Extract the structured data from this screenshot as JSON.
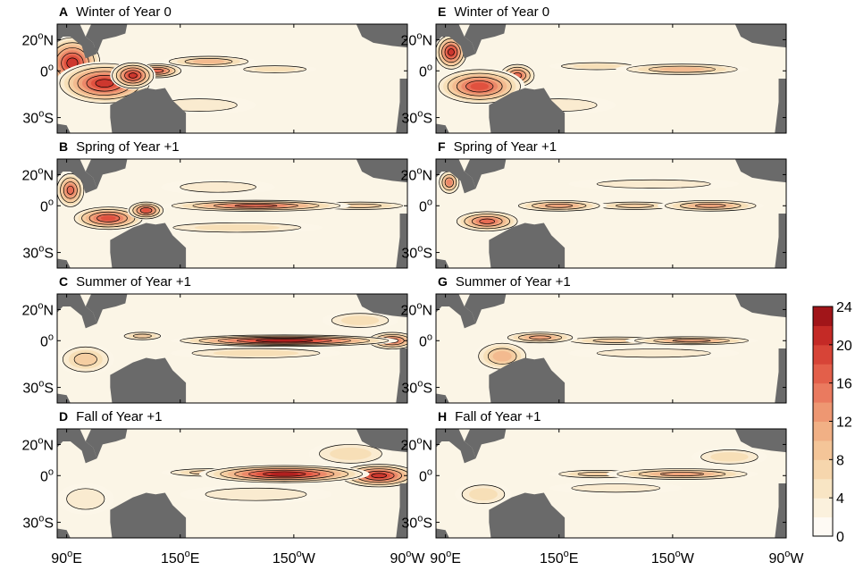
{
  "figure": {
    "panels": [
      {
        "letter": "A",
        "title": "Winter of Year 0",
        "column": 0,
        "row": 0,
        "hotspots": [
          {
            "lon": 93,
            "lat": 5,
            "rx": 16,
            "ry": 18,
            "v": 20
          },
          {
            "lon": 110,
            "lat": -8,
            "rx": 26,
            "ry": 14,
            "v": 20
          },
          {
            "lon": 125,
            "lat": -3,
            "rx": 12,
            "ry": 9,
            "v": 20
          },
          {
            "lon": 138,
            "lat": 0,
            "rx": 14,
            "ry": 5,
            "v": 16
          },
          {
            "lon": 165,
            "lat": 6,
            "rx": 25,
            "ry": 4,
            "v": 10
          },
          {
            "lon": 200,
            "lat": 1,
            "rx": 22,
            "ry": 3,
            "v": 6
          },
          {
            "lon": 160,
            "lat": -22,
            "rx": 30,
            "ry": 6,
            "v": 4
          }
        ]
      },
      {
        "letter": "B",
        "title": "Spring of Year +1",
        "column": 0,
        "row": 1,
        "hotspots": [
          {
            "lon": 92,
            "lat": 10,
            "rx": 8,
            "ry": 12,
            "v": 16
          },
          {
            "lon": 112,
            "lat": -8,
            "rx": 20,
            "ry": 8,
            "v": 18
          },
          {
            "lon": 132,
            "lat": -3,
            "rx": 10,
            "ry": 6,
            "v": 18
          },
          {
            "lon": 190,
            "lat": 0,
            "rx": 50,
            "ry": 4,
            "v": 16
          },
          {
            "lon": 245,
            "lat": 0,
            "rx": 28,
            "ry": 3,
            "v": 8
          },
          {
            "lon": 180,
            "lat": -14,
            "rx": 45,
            "ry": 4,
            "v": 6
          },
          {
            "lon": 170,
            "lat": 12,
            "rx": 30,
            "ry": 5,
            "v": 4
          }
        ]
      },
      {
        "letter": "C",
        "title": "Summer of Year +1",
        "column": 0,
        "row": 2,
        "hotspots": [
          {
            "lon": 205,
            "lat": 0,
            "rx": 60,
            "ry": 4,
            "v": 22
          },
          {
            "lon": 262,
            "lat": 0,
            "rx": 14,
            "ry": 6,
            "v": 16
          },
          {
            "lon": 130,
            "lat": 3,
            "rx": 12,
            "ry": 3,
            "v": 8
          },
          {
            "lon": 100,
            "lat": -12,
            "rx": 15,
            "ry": 10,
            "v": 8
          },
          {
            "lon": 190,
            "lat": -8,
            "rx": 45,
            "ry": 4,
            "v": 6
          },
          {
            "lon": 245,
            "lat": 13,
            "rx": 20,
            "ry": 6,
            "v": 6
          }
        ]
      },
      {
        "letter": "D",
        "title": "Fall of Year +1",
        "column": 0,
        "row": 3,
        "hotspots": [
          {
            "lon": 205,
            "lat": 1,
            "rx": 45,
            "ry": 6,
            "v": 22
          },
          {
            "lon": 255,
            "lat": 0,
            "rx": 22,
            "ry": 8,
            "v": 20
          },
          {
            "lon": 165,
            "lat": 2,
            "rx": 25,
            "ry": 3,
            "v": 8
          },
          {
            "lon": 240,
            "lat": 14,
            "rx": 22,
            "ry": 8,
            "v": 6
          },
          {
            "lon": 190,
            "lat": -12,
            "rx": 40,
            "ry": 6,
            "v": 4
          },
          {
            "lon": 100,
            "lat": -15,
            "rx": 15,
            "ry": 10,
            "v": 4
          }
        ]
      },
      {
        "letter": "E",
        "title": "Winter of Year 0",
        "column": 1,
        "row": 0,
        "hotspots": [
          {
            "lon": 93,
            "lat": 12,
            "rx": 9,
            "ry": 12,
            "v": 20
          },
          {
            "lon": 108,
            "lat": -10,
            "rx": 24,
            "ry": 12,
            "v": 18
          },
          {
            "lon": 128,
            "lat": -3,
            "rx": 10,
            "ry": 8,
            "v": 16
          },
          {
            "lon": 215,
            "lat": 1,
            "rx": 35,
            "ry": 4,
            "v": 10
          },
          {
            "lon": 170,
            "lat": 3,
            "rx": 25,
            "ry": 3,
            "v": 6
          },
          {
            "lon": 150,
            "lat": -22,
            "rx": 30,
            "ry": 6,
            "v": 4
          }
        ]
      },
      {
        "letter": "F",
        "title": "Spring of Year +1",
        "column": 1,
        "row": 1,
        "hotspots": [
          {
            "lon": 92,
            "lat": 15,
            "rx": 6,
            "ry": 8,
            "v": 14
          },
          {
            "lon": 112,
            "lat": -10,
            "rx": 18,
            "ry": 7,
            "v": 16
          },
          {
            "lon": 150,
            "lat": 0,
            "rx": 25,
            "ry": 4,
            "v": 12
          },
          {
            "lon": 230,
            "lat": 0,
            "rx": 28,
            "ry": 4,
            "v": 12
          },
          {
            "lon": 190,
            "lat": 0,
            "rx": 25,
            "ry": 3,
            "v": 8
          },
          {
            "lon": 200,
            "lat": 14,
            "rx": 45,
            "ry": 4,
            "v": 4
          }
        ]
      },
      {
        "letter": "G",
        "title": "Summer of Year +1",
        "column": 1,
        "row": 2,
        "hotspots": [
          {
            "lon": 140,
            "lat": 2,
            "rx": 20,
            "ry": 4,
            "v": 12
          },
          {
            "lon": 220,
            "lat": 0,
            "rx": 35,
            "ry": 3,
            "v": 12
          },
          {
            "lon": 120,
            "lat": -10,
            "rx": 15,
            "ry": 10,
            "v": 10
          },
          {
            "lon": 180,
            "lat": 0,
            "rx": 30,
            "ry": 3,
            "v": 8
          },
          {
            "lon": 200,
            "lat": -8,
            "rx": 45,
            "ry": 4,
            "v": 4
          }
        ]
      },
      {
        "letter": "H",
        "title": "Fall of Year +1",
        "column": 1,
        "row": 3,
        "hotspots": [
          {
            "lon": 215,
            "lat": 1,
            "rx": 40,
            "ry": 4,
            "v": 12
          },
          {
            "lon": 170,
            "lat": 1,
            "rx": 25,
            "ry": 3,
            "v": 8
          },
          {
            "lon": 240,
            "lat": 12,
            "rx": 20,
            "ry": 6,
            "v": 6
          },
          {
            "lon": 180,
            "lat": -8,
            "rx": 35,
            "ry": 4,
            "v": 4
          },
          {
            "lon": 110,
            "lat": -12,
            "rx": 15,
            "ry": 8,
            "v": 6
          }
        ]
      }
    ],
    "lat_ticks": [
      {
        "value": 20,
        "label_num": "20",
        "label_sup": "o",
        "label_hem": "N"
      },
      {
        "value": 0,
        "label_num": "0",
        "label_sup": "o",
        "label_hem": ""
      },
      {
        "value": -30,
        "label_num": "30",
        "label_sup": "o",
        "label_hem": "S"
      }
    ],
    "lon_ticks": [
      {
        "value": 90,
        "label_num": "90",
        "label_sup": "o",
        "label_hem": "E"
      },
      {
        "value": 150,
        "label_num": "150",
        "label_sup": "o",
        "label_hem": "E"
      },
      {
        "value": 210,
        "label_num": "150",
        "label_sup": "o",
        "label_hem": "W"
      },
      {
        "value": 270,
        "label_num": "90",
        "label_sup": "o",
        "label_hem": "W"
      }
    ],
    "lon_range": [
      85,
      270
    ],
    "lat_range": [
      -40,
      30
    ],
    "land_color": "#6a6a6a",
    "ocean_color": "#fbf5e6",
    "colorbar": {
      "min": 0,
      "max": 24,
      "step": 2,
      "tick_labels": [
        "0",
        "4",
        "8",
        "12",
        "16",
        "20",
        "24"
      ],
      "stops": [
        "#ffffff",
        "#fbf1dd",
        "#f7dfb7",
        "#f4c598",
        "#f0a57c",
        "#ea7a5f",
        "#e0513f",
        "#c42a26",
        "#8f0a12"
      ]
    }
  }
}
